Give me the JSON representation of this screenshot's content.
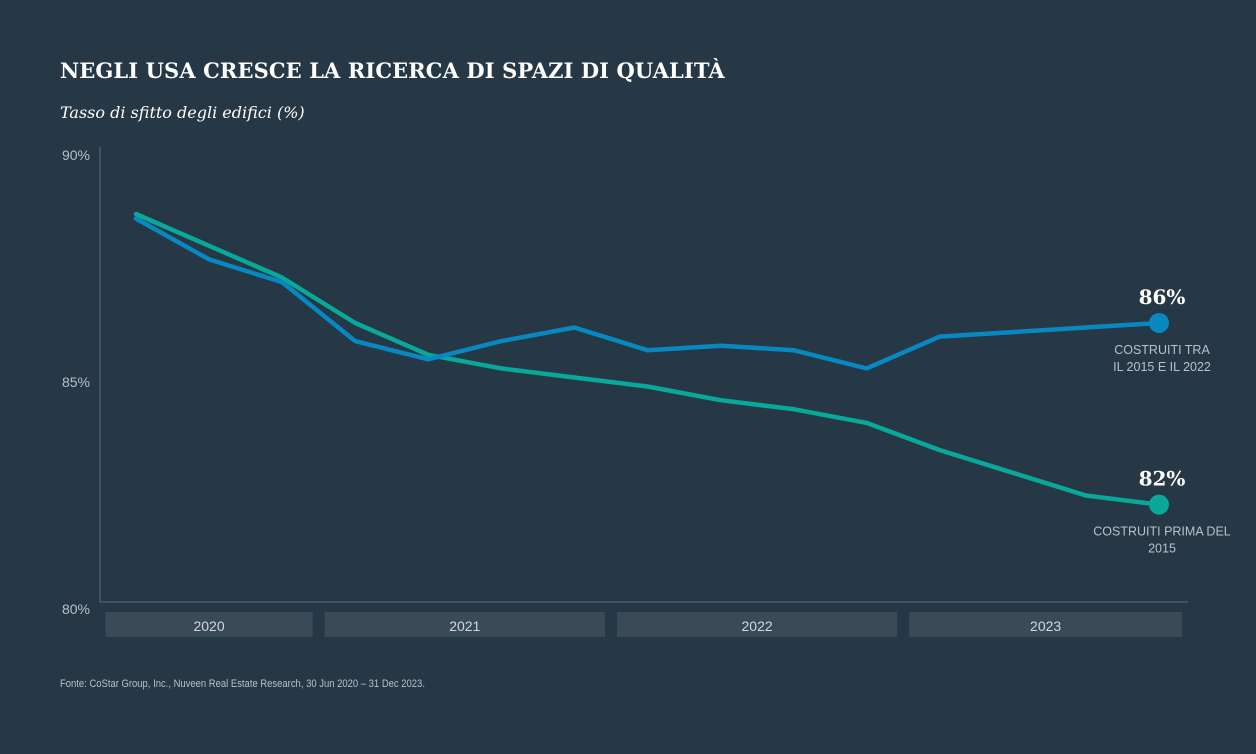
{
  "header": {
    "title": "NEGLI USA CRESCE LA RICERCA DI SPAZI DI QUALITÀ",
    "subtitle": "Tasso di sfitto degli edifici (%)"
  },
  "footer": {
    "source": "Fonte: CoStar Group, Inc., Nuveen Real Estate Research, 30 Jun 2020 – 31 Dec 2023."
  },
  "colors": {
    "background": "#263746",
    "series_new": "#0788c0",
    "series_old": "#08a89a",
    "axis": "#4b5c6a",
    "year_band": "#3b4a57"
  },
  "chart_data": {
    "type": "line",
    "title": "NEGLI USA CRESCE LA RICERCA DI SPAZI DI QUALITÀ",
    "ylabel": "Tasso di sfitto degli edifici (%)",
    "xlabel": "",
    "ylim": [
      80,
      90
    ],
    "yticks": [
      {
        "value": 90,
        "label": "90%"
      },
      {
        "value": 85,
        "label": "85%"
      },
      {
        "value": 80,
        "label": "80%"
      }
    ],
    "x": [
      "2020-Q2",
      "2020-Q3",
      "2020-Q4",
      "2021-Q1",
      "2021-Q2",
      "2021-Q3",
      "2021-Q4",
      "2022-Q1",
      "2022-Q2",
      "2022-Q3",
      "2022-Q4",
      "2023-Q1",
      "2023-Q2",
      "2023-Q3",
      "2023-Q4"
    ],
    "year_groups": [
      {
        "label": "2020",
        "start": 0,
        "end": 2
      },
      {
        "label": "2021",
        "start": 3,
        "end": 6
      },
      {
        "label": "2022",
        "start": 7,
        "end": 10
      },
      {
        "label": "2023",
        "start": 11,
        "end": 14
      }
    ],
    "series": [
      {
        "name": "Costruiti tra il 2015 e il 2022",
        "key": "new",
        "color": "#0788c0",
        "values": [
          88.6,
          87.7,
          87.2,
          85.9,
          85.5,
          85.9,
          86.2,
          85.7,
          85.8,
          85.7,
          85.3,
          86.0,
          86.1,
          86.2,
          86.3
        ],
        "end_value_label": "86%",
        "end_label_lines": [
          "COSTRUITI  TRA",
          "IL 2015 E IL 2022"
        ]
      },
      {
        "name": "Costruiti prima del 2015",
        "key": "old",
        "color": "#08a89a",
        "values": [
          88.7,
          88.0,
          87.3,
          86.3,
          85.6,
          85.3,
          85.1,
          84.9,
          84.6,
          84.4,
          84.1,
          83.5,
          83.0,
          82.5,
          82.3
        ],
        "end_value_label": "82%",
        "end_label_lines": [
          "COSTRUITI PRIMA DEL",
          "2015"
        ]
      }
    ]
  }
}
